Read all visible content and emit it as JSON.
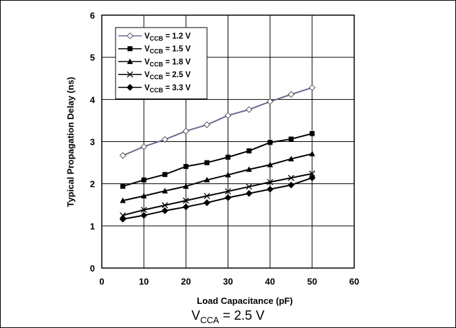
{
  "chart_data": {
    "type": "line",
    "xlabel": "Load Capacitance (pF)",
    "ylabel": "Typical Propagation Delay (ns)",
    "xlim": [
      0,
      60
    ],
    "ylim": [
      0,
      6
    ],
    "xticks": [
      0,
      10,
      20,
      30,
      40,
      50,
      60
    ],
    "yticks": [
      0,
      1,
      2,
      3,
      4,
      5,
      6
    ],
    "grid": true,
    "legend_position": "top-left",
    "x": [
      5,
      10,
      15,
      20,
      25,
      30,
      35,
      40,
      45,
      50
    ],
    "series": [
      {
        "name": "V_CCB = 1.2 V",
        "name_main": "V",
        "name_sub": "CCB",
        "name_rest": " = 1.2 V",
        "marker": "open-diamond",
        "color": "#6a6a90",
        "values": [
          2.67,
          2.88,
          3.05,
          3.25,
          3.4,
          3.62,
          3.76,
          3.95,
          4.12,
          4.28
        ]
      },
      {
        "name": "V_CCB = 1.5 V",
        "name_main": "V",
        "name_sub": "CCB",
        "name_rest": " = 1.5 V",
        "marker": "square",
        "color": "#000000",
        "values": [
          1.94,
          2.09,
          2.22,
          2.41,
          2.5,
          2.63,
          2.78,
          2.98,
          3.06,
          3.19
        ]
      },
      {
        "name": "V_CCB = 1.8 V",
        "name_main": "V",
        "name_sub": "CCB",
        "name_rest": " = 1.8 V",
        "marker": "triangle",
        "color": "#000000",
        "values": [
          1.6,
          1.71,
          1.83,
          1.94,
          2.09,
          2.21,
          2.34,
          2.45,
          2.59,
          2.71
        ]
      },
      {
        "name": "V_CCB = 2.5 V",
        "name_main": "V",
        "name_sub": "CCB",
        "name_rest": " = 2.5 V",
        "marker": "x",
        "color": "#000000",
        "values": [
          1.25,
          1.38,
          1.49,
          1.6,
          1.71,
          1.82,
          1.93,
          2.04,
          2.14,
          2.24
        ]
      },
      {
        "name": "V_CCB = 3.3 V",
        "name_main": "V",
        "name_sub": "CCB",
        "name_rest": " = 3.3 V",
        "marker": "diamond",
        "color": "#000000",
        "values": [
          1.16,
          1.25,
          1.36,
          1.45,
          1.55,
          1.67,
          1.77,
          1.87,
          1.97,
          2.14
        ]
      }
    ]
  },
  "caption": {
    "main": "V",
    "sub": "CCA",
    "rest": " = 2.5 V"
  }
}
